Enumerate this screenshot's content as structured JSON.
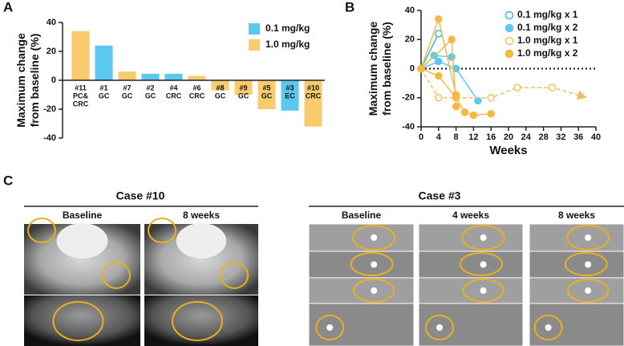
{
  "panel_labels": [
    "A",
    "B",
    "C"
  ],
  "chart_data": [
    {
      "type": "bar",
      "y_label": [
        "Maximum change",
        "from baseline (%)"
      ],
      "categories": [
        [
          "#11",
          "PC&",
          "CRC"
        ],
        [
          "#1",
          "GC"
        ],
        [
          "#7",
          "GC"
        ],
        [
          "#2",
          "GC"
        ],
        [
          "#4",
          "CRC"
        ],
        [
          "#6",
          "CRC"
        ],
        [
          "#8",
          "GC"
        ],
        [
          "#9",
          "GC"
        ],
        [
          "#5",
          "GC"
        ],
        [
          "#3",
          "EC"
        ],
        [
          "#10",
          "CRC"
        ]
      ],
      "series": [
        {
          "name": "0.1 mg/kg",
          "color": "#5bc8f0",
          "values": [
            null,
            24,
            null,
            4.5,
            4.5,
            null,
            null,
            null,
            null,
            -21,
            null
          ]
        },
        {
          "name": "1.0 mg/kg",
          "color": "#f8cb6c",
          "values": [
            34,
            null,
            6,
            null,
            null,
            3,
            -7,
            -10,
            -20,
            null,
            -32
          ]
        }
      ],
      "ylim": [
        -40,
        40
      ],
      "yticks": [
        -40,
        -20,
        0,
        20,
        40
      ],
      "legend": "top-right"
    },
    {
      "type": "line",
      "y_label": [
        "Maximum change",
        "from baseline (%)"
      ],
      "x_label": "Weeks",
      "xlim": [
        0,
        40
      ],
      "xticks": [
        0,
        4,
        8,
        12,
        16,
        20,
        24,
        28,
        32,
        36,
        40
      ],
      "ylim": [
        -40,
        40
      ],
      "yticks": [
        -40,
        -20,
        0,
        20,
        40
      ],
      "legend": "top-right",
      "series": [
        {
          "name": "0.1 mg/kg x 1",
          "color": "#3db8e8",
          "filled": false,
          "line_style": "solid",
          "patients": [
            {
              "x": [
                0,
                4
              ],
              "values": [
                0,
                24
              ]
            }
          ]
        },
        {
          "name": "0.1 mg/kg x 2",
          "color": "#5bc8f0",
          "filled": true,
          "line_style": "solid",
          "patients": [
            {
              "x": [
                0,
                4,
                8,
                13
              ],
              "values": [
                0,
                5,
                0,
                -22
              ]
            },
            {
              "x": [
                0,
                3,
                7
              ],
              "values": [
                0,
                9,
                8
              ]
            }
          ]
        },
        {
          "name": "1.0 mg/kg x 1",
          "color": "#f0c060",
          "filled": false,
          "line_style": "dashed",
          "end_arrow": true,
          "patients": [
            {
              "x": [
                0,
                4,
                16,
                22,
                30,
                38
              ],
              "values": [
                0,
                -20,
                -20,
                -13,
                -13,
                -20
              ]
            }
          ]
        },
        {
          "name": "1.0 mg/kg x 2",
          "color": "#f5b942",
          "filled": true,
          "line_style": "solid",
          "patients": [
            {
              "x": [
                0,
                4,
                8
              ],
              "values": [
                0,
                34,
                -18
              ]
            },
            {
              "x": [
                0,
                7,
                8
              ],
              "values": [
                0,
                20,
                -26
              ]
            },
            {
              "x": [
                0,
                4,
                8,
                10,
                12,
                16
              ],
              "values": [
                0,
                -5,
                -20,
                -30,
                -32,
                -31
              ]
            }
          ]
        }
      ]
    }
  ],
  "panel_c": {
    "cases": [
      {
        "title": "Case #10",
        "timepoints": [
          "Baseline",
          "8 weeks"
        ]
      },
      {
        "title": "Case #3",
        "timepoints": [
          "Baseline",
          "4 weeks",
          "8 weeks"
        ]
      }
    ]
  }
}
